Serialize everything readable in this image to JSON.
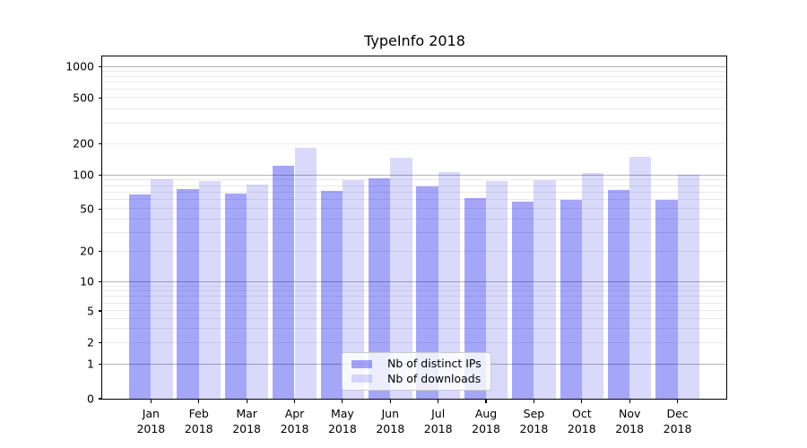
{
  "chart_data": {
    "type": "bar",
    "title": "TypeInfo 2018",
    "x_categories": [
      {
        "month": "Jan",
        "year": "2018"
      },
      {
        "month": "Feb",
        "year": "2018"
      },
      {
        "month": "Mar",
        "year": "2018"
      },
      {
        "month": "Apr",
        "year": "2018"
      },
      {
        "month": "May",
        "year": "2018"
      },
      {
        "month": "Jun",
        "year": "2018"
      },
      {
        "month": "Jul",
        "year": "2018"
      },
      {
        "month": "Aug",
        "year": "2018"
      },
      {
        "month": "Sep",
        "year": "2018"
      },
      {
        "month": "Oct",
        "year": "2018"
      },
      {
        "month": "Nov",
        "year": "2018"
      },
      {
        "month": "Dec",
        "year": "2018"
      }
    ],
    "series": [
      {
        "name": "Nb of distinct IPs",
        "color": "rgba(0,0,235,0.35)",
        "values": [
          67,
          75,
          69,
          122,
          72,
          94,
          79,
          63,
          58,
          60,
          74,
          60
        ]
      },
      {
        "name": "Nb of downloads",
        "color": "rgba(0,0,235,0.15)",
        "values": [
          92,
          89,
          82,
          183,
          90,
          148,
          106,
          88,
          90,
          105,
          149,
          100
        ]
      }
    ],
    "y_axis": {
      "scale": "symlog",
      "tick_labels": [
        "0",
        "1",
        "2",
        "5",
        "10",
        "20",
        "50",
        "100",
        "200",
        "500",
        "1000"
      ],
      "tick_values": [
        0,
        1,
        2,
        5,
        10,
        20,
        50,
        100,
        200,
        500,
        1000
      ],
      "ylim": [
        0,
        1250
      ],
      "major_grid_values": [
        1,
        10,
        100,
        1000
      ],
      "minor_grid_values": [
        2,
        3,
        4,
        5,
        6,
        7,
        8,
        9,
        20,
        30,
        40,
        50,
        60,
        70,
        80,
        90,
        200,
        300,
        400,
        500,
        600,
        700,
        800,
        900
      ],
      "anchors": [
        [
          0,
          0
        ],
        [
          1,
          0.1016
        ],
        [
          2,
          0.1628
        ],
        [
          5,
          0.2565
        ],
        [
          10,
          0.3411
        ],
        [
          20,
          0.4297
        ],
        [
          50,
          0.5547
        ],
        [
          100,
          0.6536
        ],
        [
          200,
          0.7448
        ],
        [
          500,
          0.8789
        ],
        [
          1000,
          0.9706
        ]
      ]
    },
    "grid": {
      "major_color": "#b3b3b3",
      "minor_color": "#eaeaea"
    },
    "legend": {
      "position": "lower-center"
    },
    "colors": {
      "spine": "#000000",
      "text": "#000000",
      "background": "#ffffff"
    }
  }
}
